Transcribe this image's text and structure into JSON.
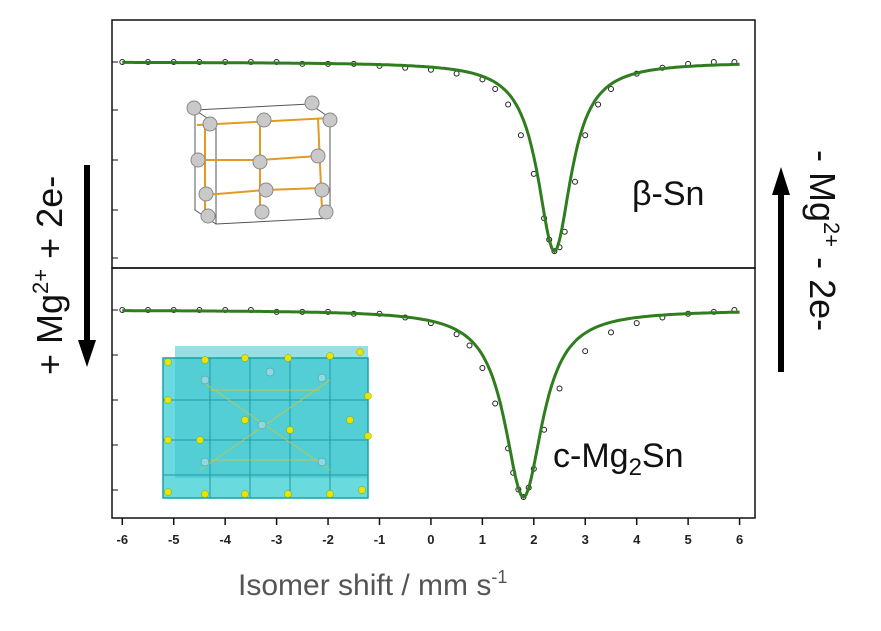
{
  "chart_data": {
    "type": "scatter",
    "xlabel": "Isomer shift / mm s",
    "xlabel_sup": "-1",
    "xlim": [
      -6.2,
      6.3
    ],
    "xticks": [
      -6,
      -5,
      -4,
      -3,
      -2,
      -1,
      0,
      1,
      2,
      3,
      4,
      5,
      6
    ],
    "panels": [
      {
        "label": "β-Sn",
        "series": [
          {
            "kind": "points",
            "x": [
              -6.0,
              -5.5,
              -5.0,
              -4.5,
              -4.0,
              -3.5,
              -3.0,
              -2.5,
              -2.0,
              -1.5,
              -1.0,
              -0.5,
              0.0,
              0.5,
              1.0,
              1.25,
              1.5,
              1.75,
              2.0,
              2.2,
              2.3,
              2.4,
              2.5,
              2.6,
              2.8,
              3.0,
              3.25,
              3.5,
              4.0,
              4.5,
              5.0,
              5.5,
              5.9
            ],
            "y": [
              1.0,
              1.0,
              1.0,
              1.0,
              1.0,
              1.0,
              1.0,
              0.99,
              0.99,
              0.99,
              0.98,
              0.97,
              0.96,
              0.94,
              0.91,
              0.86,
              0.78,
              0.62,
              0.42,
              0.19,
              0.08,
              0.02,
              0.04,
              0.12,
              0.38,
              0.62,
              0.78,
              0.86,
              0.94,
              0.97,
              0.99,
              1.0,
              1.0
            ]
          },
          {
            "kind": "fit",
            "center": 2.4,
            "width": 0.8,
            "depth": 0.98,
            "color": "#2f7d1f"
          }
        ]
      },
      {
        "label_main": "c-Mg",
        "label_sub": "2",
        "label_tail": "Sn",
        "series": [
          {
            "kind": "points",
            "x": [
              -6.0,
              -5.5,
              -5.0,
              -4.5,
              -4.0,
              -3.5,
              -3.0,
              -2.5,
              -2.0,
              -1.5,
              -1.0,
              -0.5,
              0.0,
              0.5,
              0.75,
              1.0,
              1.25,
              1.5,
              1.6,
              1.7,
              1.8,
              1.9,
              2.0,
              2.2,
              2.5,
              3.0,
              3.5,
              4.0,
              4.5,
              5.0,
              5.5,
              5.9
            ],
            "y": [
              1.0,
              1.0,
              1.0,
              1.0,
              1.0,
              1.0,
              0.99,
              0.99,
              0.99,
              0.98,
              0.98,
              0.96,
              0.93,
              0.87,
              0.81,
              0.69,
              0.5,
              0.26,
              0.13,
              0.04,
              0.0,
              0.05,
              0.15,
              0.36,
              0.58,
              0.78,
              0.88,
              0.93,
              0.96,
              0.98,
              0.99,
              1.0
            ]
          },
          {
            "kind": "fit",
            "center": 1.8,
            "width": 0.9,
            "depth": 1.0,
            "color": "#2f7d1f"
          }
        ]
      }
    ],
    "arrows": [
      {
        "label_base": "+ Mg",
        "label_sup": "2+",
        "label_tail": " + 2e-",
        "direction": "down"
      },
      {
        "label_base": "- Mg",
        "label_sup": "2+",
        "label_tail": " - 2e-",
        "direction": "up"
      }
    ]
  }
}
